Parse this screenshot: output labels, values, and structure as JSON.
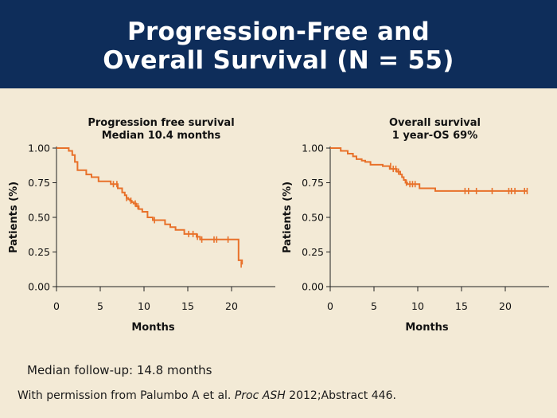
{
  "header": {
    "title_line1": "Progression-Free and",
    "title_line2": "Overall Survival (N = 55)"
  },
  "colors": {
    "header_bg": "#0e2d5a",
    "curve": "#e8712a",
    "background": "#f3ead6"
  },
  "chart_data": [
    {
      "type": "line",
      "title": "Progression free survival",
      "subtitle": "Median 10.4 months",
      "xlabel": "Months",
      "ylabel": "Patients (%)",
      "xlim": [
        0,
        25
      ],
      "ylim": [
        0,
        1
      ],
      "xticks": [
        "0",
        "5",
        "10",
        "15",
        "20"
      ],
      "yticks": [
        "0.00",
        "0.25",
        "0.50",
        "0.75",
        "1.00"
      ],
      "step_points": [
        [
          0,
          1.0
        ],
        [
          1.4,
          0.98
        ],
        [
          1.8,
          0.95
        ],
        [
          2.1,
          0.9
        ],
        [
          2.4,
          0.84
        ],
        [
          3.4,
          0.81
        ],
        [
          4.0,
          0.79
        ],
        [
          4.8,
          0.76
        ],
        [
          6.2,
          0.74
        ],
        [
          7.0,
          0.71
        ],
        [
          7.5,
          0.68
        ],
        [
          7.8,
          0.66
        ],
        [
          8.0,
          0.64
        ],
        [
          8.2,
          0.63
        ],
        [
          8.4,
          0.62
        ],
        [
          8.6,
          0.61
        ],
        [
          8.8,
          0.6
        ],
        [
          9.1,
          0.58
        ],
        [
          9.4,
          0.56
        ],
        [
          9.8,
          0.54
        ],
        [
          10.4,
          0.5
        ],
        [
          11.0,
          0.48
        ],
        [
          12.4,
          0.45
        ],
        [
          13.0,
          0.43
        ],
        [
          13.6,
          0.41
        ],
        [
          14.6,
          0.38
        ],
        [
          16.0,
          0.36
        ],
        [
          16.4,
          0.34
        ],
        [
          20.8,
          0.19
        ],
        [
          21.2,
          0.16
        ]
      ],
      "censor_points": [
        [
          6.5,
          0.74
        ],
        [
          6.9,
          0.74
        ],
        [
          8.0,
          0.64
        ],
        [
          8.5,
          0.62
        ],
        [
          9.0,
          0.6
        ],
        [
          9.3,
          0.58
        ],
        [
          11.2,
          0.48
        ],
        [
          15.1,
          0.38
        ],
        [
          15.6,
          0.38
        ],
        [
          16.1,
          0.36
        ],
        [
          16.6,
          0.34
        ],
        [
          18.0,
          0.34
        ],
        [
          18.3,
          0.34
        ],
        [
          19.6,
          0.34
        ],
        [
          21.1,
          0.16
        ]
      ]
    },
    {
      "type": "line",
      "title": "Overall survival",
      "subtitle": "1 year-OS 69%",
      "xlabel": "Months",
      "ylabel": "Patients (%)",
      "xlim": [
        0,
        25
      ],
      "ylim": [
        0,
        1
      ],
      "xticks": [
        "0",
        "5",
        "10",
        "15",
        "20"
      ],
      "yticks": [
        "0.00",
        "0.25",
        "0.50",
        "0.75",
        "1.00"
      ],
      "step_points": [
        [
          0,
          1.0
        ],
        [
          1.2,
          0.98
        ],
        [
          2.0,
          0.96
        ],
        [
          2.6,
          0.94
        ],
        [
          3.0,
          0.92
        ],
        [
          3.6,
          0.91
        ],
        [
          4.0,
          0.9
        ],
        [
          4.6,
          0.88
        ],
        [
          6.0,
          0.87
        ],
        [
          6.8,
          0.85
        ],
        [
          7.6,
          0.83
        ],
        [
          8.0,
          0.81
        ],
        [
          8.2,
          0.79
        ],
        [
          8.4,
          0.77
        ],
        [
          8.6,
          0.75
        ],
        [
          8.8,
          0.74
        ],
        [
          10.2,
          0.71
        ],
        [
          12.0,
          0.69
        ]
      ],
      "censor_points": [
        [
          6.9,
          0.87
        ],
        [
          7.2,
          0.85
        ],
        [
          7.5,
          0.85
        ],
        [
          7.8,
          0.83
        ],
        [
          8.7,
          0.75
        ],
        [
          9.1,
          0.74
        ],
        [
          9.4,
          0.74
        ],
        [
          9.7,
          0.74
        ],
        [
          15.4,
          0.69
        ],
        [
          15.8,
          0.69
        ],
        [
          16.7,
          0.69
        ],
        [
          18.5,
          0.69
        ],
        [
          20.4,
          0.69
        ],
        [
          20.7,
          0.69
        ],
        [
          21.1,
          0.69
        ],
        [
          22.2,
          0.69
        ],
        [
          22.5,
          0.69
        ]
      ]
    }
  ],
  "footnotes": {
    "followup": "Median follow-up: 14.8 months",
    "citation_prefix": "With permission from Palumbo A et al. ",
    "citation_journal": "Proc ASH",
    "citation_suffix": " 2012;Abstract 446."
  }
}
